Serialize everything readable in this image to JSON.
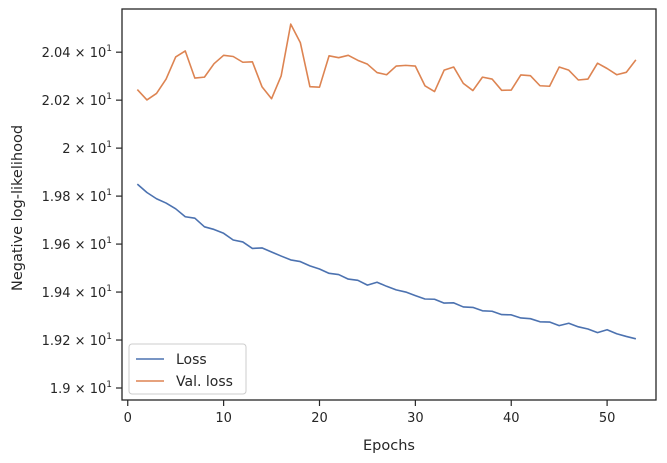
{
  "chart_data": {
    "type": "line",
    "xlabel": "Epochs",
    "ylabel": "Negative log-likelihood",
    "xlim": [
      -0.6,
      55.1
    ],
    "ylim": [
      18.95,
      20.58
    ],
    "x_ticks": [
      0,
      10,
      20,
      30,
      40,
      50
    ],
    "x_tick_labels": [
      "0",
      "10",
      "20",
      "30",
      "40",
      "50"
    ],
    "y_ticks": [
      19.0,
      19.2,
      19.4,
      19.6,
      19.8,
      20.0,
      20.2,
      20.4
    ],
    "y_tick_mantissas": [
      "1.9",
      "1.92",
      "1.94",
      "1.96",
      "1.98",
      "2",
      "2.02",
      "2.04"
    ],
    "y_tick_base": "× 10",
    "y_tick_exponent": "1",
    "grid": false,
    "legend_position": "lower-left",
    "colors": {
      "Loss": "#4c72b0",
      "Val. loss": "#dd8452",
      "axes": "#262626"
    },
    "x": [
      1,
      2,
      3,
      4,
      5,
      6,
      7,
      8,
      9,
      10,
      11,
      12,
      13,
      14,
      15,
      16,
      17,
      18,
      19,
      20,
      21,
      22,
      23,
      24,
      25,
      26,
      27,
      28,
      29,
      30,
      31,
      32,
      33,
      34,
      35,
      36,
      37,
      38,
      39,
      40,
      41,
      42,
      43,
      44,
      45,
      46,
      47,
      48,
      49,
      50,
      51,
      52,
      53
    ],
    "series": [
      {
        "name": "Loss",
        "values": [
          19.85,
          19.815,
          19.789,
          19.771,
          19.747,
          19.714,
          19.708,
          19.672,
          19.661,
          19.645,
          19.617,
          19.609,
          19.582,
          19.584,
          19.567,
          19.55,
          19.534,
          19.527,
          19.509,
          19.496,
          19.478,
          19.473,
          19.454,
          19.449,
          19.429,
          19.441,
          19.424,
          19.409,
          19.4,
          19.385,
          19.371,
          19.37,
          19.354,
          19.355,
          19.338,
          19.336,
          19.322,
          19.32,
          19.306,
          19.305,
          19.292,
          19.289,
          19.276,
          19.275,
          19.26,
          19.27,
          19.255,
          19.246,
          19.231,
          19.243,
          19.226,
          19.215,
          19.205
        ]
      },
      {
        "name": "Val. loss",
        "values": [
          20.244,
          20.201,
          20.228,
          20.288,
          20.38,
          20.405,
          20.292,
          20.296,
          20.352,
          20.387,
          20.382,
          20.358,
          20.36,
          20.256,
          20.206,
          20.301,
          20.517,
          20.44,
          20.256,
          20.254,
          20.385,
          20.377,
          20.387,
          20.366,
          20.35,
          20.315,
          20.306,
          20.342,
          20.345,
          20.342,
          20.26,
          20.236,
          20.325,
          20.338,
          20.27,
          20.24,
          20.296,
          20.288,
          20.241,
          20.242,
          20.305,
          20.302,
          20.26,
          20.258,
          20.338,
          20.325,
          20.284,
          20.288,
          20.354,
          20.332,
          20.306,
          20.316,
          20.368
        ]
      }
    ]
  }
}
